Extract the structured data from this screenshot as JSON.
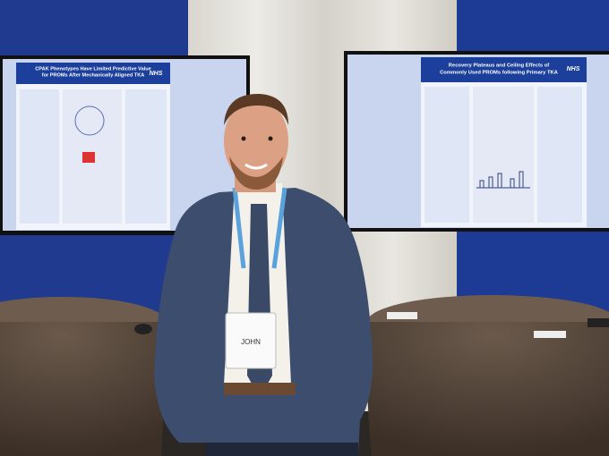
{
  "posters": [
    {
      "title_lines": [
        "CPAK Phenotypes Have Limited Predictive Value",
        "for PROMs After Mechanically Aligned TKA"
      ],
      "logo": "NHS"
    },
    {
      "title_lines": [
        "Recovery Plateaus and Ceiling Effects of",
        "Commonly Used PROMs following Primary TKA"
      ],
      "logo": "NHS"
    }
  ],
  "badge": {
    "name": "JOHN"
  }
}
